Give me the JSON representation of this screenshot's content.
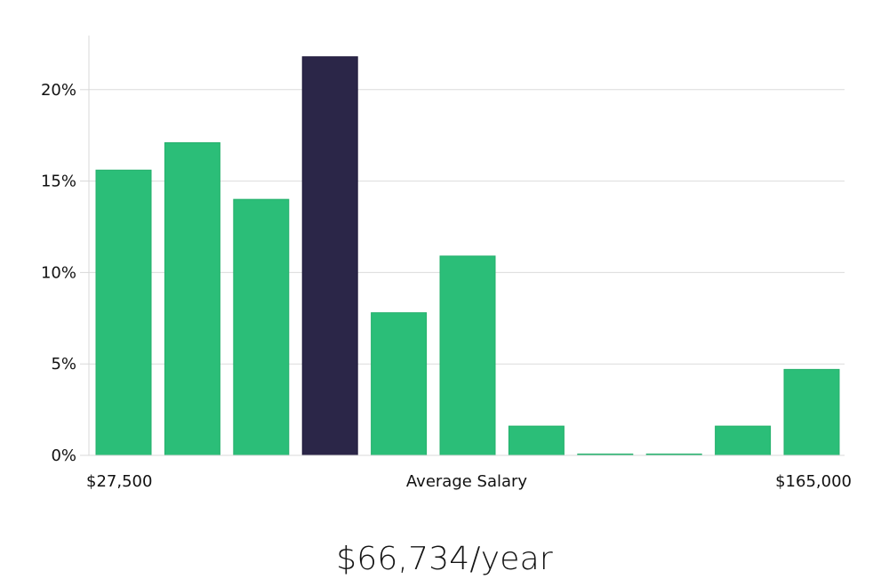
{
  "chart_data": {
    "type": "bar",
    "title": "",
    "xlabel": "Average Salary",
    "ylabel": "",
    "x_range_labels": {
      "min": "$27,500",
      "max": "$165,000"
    },
    "values": [
      15.6,
      17.1,
      14.0,
      21.8,
      7.8,
      10.9,
      1.6,
      0.0,
      0.0,
      1.6,
      4.7
    ],
    "highlight_index": 3,
    "ylim": [
      0,
      23
    ],
    "yticks": [
      {
        "value": 0,
        "label": "0%"
      },
      {
        "value": 5,
        "label": "5%"
      },
      {
        "value": 10,
        "label": "10%"
      },
      {
        "value": 15,
        "label": "15%"
      },
      {
        "value": 20,
        "label": "20%"
      }
    ],
    "grid": true,
    "legend": "none"
  },
  "colors": {
    "bar": "#2bbe78",
    "highlight": "#2b2648",
    "grid": "#dcdcdc",
    "axis": "#d8d8d8"
  },
  "summary": {
    "salary_text": "$66,734/year"
  }
}
